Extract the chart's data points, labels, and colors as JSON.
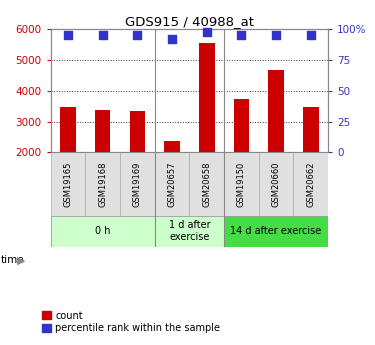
{
  "title": "GDS915 / 40988_at",
  "samples": [
    "GSM19165",
    "GSM19168",
    "GSM19169",
    "GSM20657",
    "GSM20658",
    "GSM19150",
    "GSM20660",
    "GSM20662"
  ],
  "counts": [
    3480,
    3370,
    3330,
    2380,
    5560,
    3730,
    4680,
    3480
  ],
  "percentile_ranks": [
    95,
    95,
    95,
    92,
    98,
    95,
    95,
    95
  ],
  "ylim_left": [
    2000,
    6000
  ],
  "ylim_right": [
    0,
    100
  ],
  "yticks_left": [
    2000,
    3000,
    4000,
    5000,
    6000
  ],
  "yticks_right": [
    0,
    25,
    50,
    75,
    100
  ],
  "bar_color": "#cc0000",
  "dot_color": "#3333cc",
  "left_tick_color": "#cc0000",
  "right_tick_color": "#3333cc",
  "groups": [
    {
      "label": "0 h",
      "start": 0,
      "end": 3,
      "color": "#ccffcc"
    },
    {
      "label": "1 d after\nexercise",
      "start": 3,
      "end": 5,
      "color": "#ccffcc"
    },
    {
      "label": "14 d after exercise",
      "start": 5,
      "end": 8,
      "color": "#44dd44"
    }
  ],
  "group_border_indices": [
    3,
    5
  ],
  "legend_count_label": "count",
  "legend_percentile_label": "percentile rank within the sample",
  "bar_width": 0.45,
  "dot_size": 40
}
